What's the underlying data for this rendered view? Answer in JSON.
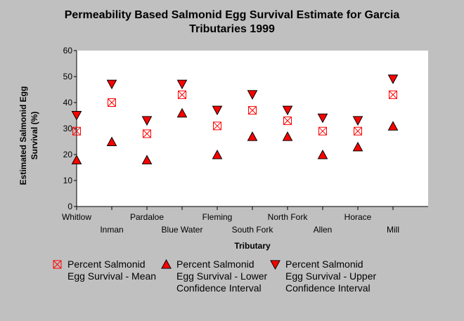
{
  "title_line1": "Permeability Based Salmonid Egg Survival Estimate for Garcia",
  "title_line2": "Tributaries 1999",
  "colors": {
    "background": "#c0c0c0",
    "plot_bg": "#ffffff",
    "marker": "#ff0000"
  },
  "chart_data": {
    "type": "scatter",
    "xlabel": "Tributary",
    "ylabel": "Estimated Salmonid Egg Survival (%)",
    "ylim": [
      0,
      60
    ],
    "yticks": [
      0,
      10,
      20,
      30,
      40,
      50,
      60
    ],
    "grid": false,
    "legend_placement": "bottom",
    "categories": [
      "Whitlow",
      "Inman",
      "Pardaloe",
      "Blue Water",
      "Fleming",
      "South Fork",
      "North Fork",
      "Allen",
      "Horace",
      "Mill"
    ],
    "series": [
      {
        "name": "Percent Salmonid Egg Survival - Mean",
        "marker": "boxed-x",
        "values": [
          29,
          40,
          28,
          43,
          31,
          37,
          33,
          29,
          29,
          43
        ]
      },
      {
        "name": "Percent Salmonid Egg Survival - Lower Confidence Interval",
        "marker": "triangle-up",
        "values": [
          18,
          25,
          18,
          36,
          20,
          27,
          27,
          20,
          23,
          31
        ]
      },
      {
        "name": "Percent Salmonid Egg Survival - Upper Confidence Interval",
        "marker": "triangle-down",
        "values": [
          35,
          47,
          33,
          47,
          37,
          43,
          37,
          34,
          33,
          49
        ]
      }
    ]
  }
}
